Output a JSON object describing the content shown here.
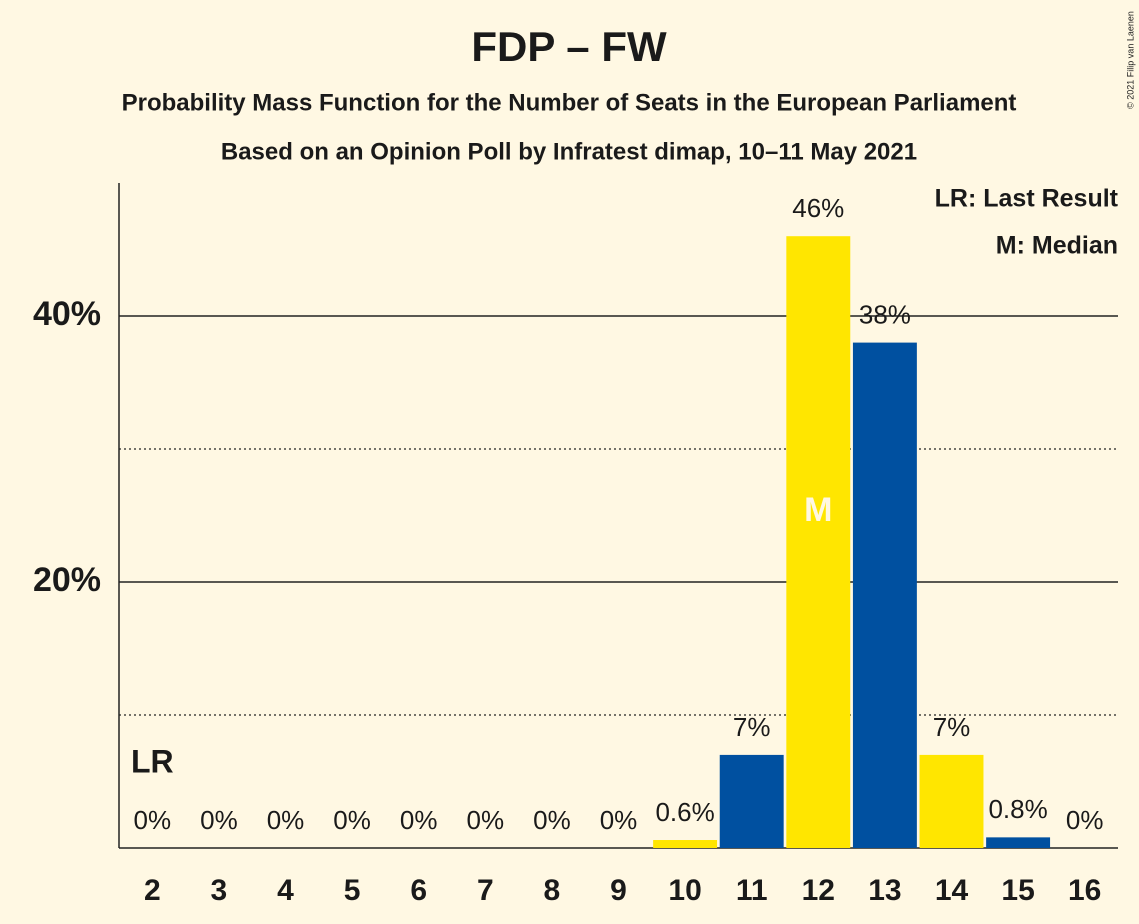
{
  "chart_data": {
    "type": "bar",
    "title": "FDP – FW",
    "subtitle": "Probability Mass Function for the Number of Seats in the European Parliament",
    "subtitle2": "Based on an Opinion Poll by Infratest dimap, 10–11 May 2021",
    "copyright": "© 2021 Filip van Laenen",
    "categories": [
      "2",
      "3",
      "4",
      "5",
      "6",
      "7",
      "8",
      "9",
      "10",
      "11",
      "12",
      "13",
      "14",
      "15",
      "16"
    ],
    "values": [
      0,
      0,
      0,
      0,
      0,
      0,
      0,
      0,
      0.6,
      7,
      46,
      38,
      7,
      0.8,
      0
    ],
    "value_labels": [
      "0%",
      "0%",
      "0%",
      "0%",
      "0%",
      "0%",
      "0%",
      "0%",
      "0.6%",
      "7%",
      "46%",
      "38%",
      "7%",
      "0.8%",
      "0%"
    ],
    "colors": [
      "#ffe600",
      "#0050a0",
      "#ffe600",
      "#0050a0",
      "#ffe600",
      "#0050a0",
      "#ffe600",
      "#0050a0",
      "#ffe600",
      "#0050a0",
      "#ffe600",
      "#0050a0",
      "#ffe600",
      "#0050a0",
      "#ffe600"
    ],
    "ylim": [
      0,
      50
    ],
    "yticks": [
      {
        "value": 20,
        "label": "20%"
      },
      {
        "value": 40,
        "label": "40%"
      }
    ],
    "minor_yticks": [
      10,
      30
    ],
    "annotations": [
      {
        "text": "LR",
        "category": "2"
      },
      {
        "text": "M",
        "category": "12"
      }
    ],
    "legend": [
      "LR: Last Result",
      "M: Median"
    ]
  }
}
